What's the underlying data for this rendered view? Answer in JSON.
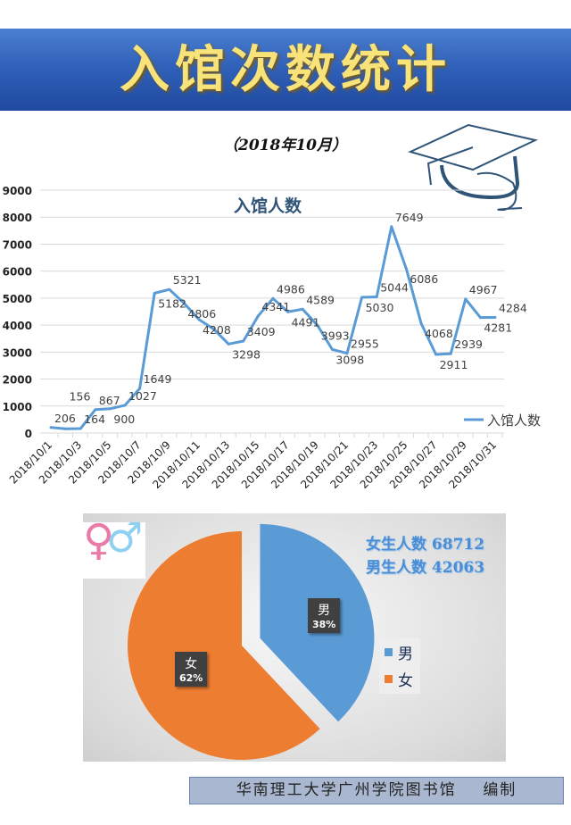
{
  "header": {
    "title": "入馆次数统计",
    "subtitle": "（2018年10月）"
  },
  "chart_data": [
    {
      "type": "line",
      "title": "入馆人数",
      "x": [
        "2018/10/1",
        "2018/10/2",
        "2018/10/3",
        "2018/10/4",
        "2018/10/5",
        "2018/10/6",
        "2018/10/7",
        "2018/10/8",
        "2018/10/9",
        "2018/10/10",
        "2018/10/11",
        "2018/10/12",
        "2018/10/13",
        "2018/10/14",
        "2018/10/15",
        "2018/10/16",
        "2018/10/17",
        "2018/10/18",
        "2018/10/19",
        "2018/10/20",
        "2018/10/21",
        "2018/10/22",
        "2018/10/23",
        "2018/10/24",
        "2018/10/25",
        "2018/10/26",
        "2018/10/27",
        "2018/10/28",
        "2018/10/29",
        "2018/10/30",
        "2018/10/31"
      ],
      "xtick_labels": [
        "2018/10/1",
        "2018/10/3",
        "2018/10/5",
        "2018/10/7",
        "2018/10/9",
        "2018/10/11",
        "2018/10/13",
        "2018/10/15",
        "2018/10/17",
        "2018/10/19",
        "2018/10/21",
        "2018/10/23",
        "2018/10/25",
        "2018/10/27",
        "2018/10/29",
        "2018/10/31"
      ],
      "series": [
        {
          "name": "入馆人数",
          "color": "#5b9bd5",
          "values": [
            206,
            156,
            164,
            867,
            900,
            1027,
            1649,
            5182,
            5321,
            4806,
            4208,
            3850,
            3298,
            3409,
            4341,
            4986,
            4491,
            4589,
            3993,
            3098,
            2955,
            5030,
            5044,
            7649,
            6086,
            4068,
            2911,
            2939,
            4967,
            4281,
            4284
          ],
          "unlabeled_index": [
            11
          ]
        }
      ],
      "ylim": [
        0,
        9000
      ],
      "yticks": [
        0,
        1000,
        2000,
        3000,
        4000,
        5000,
        6000,
        7000,
        8000,
        9000
      ],
      "grid": true,
      "legend": "bottom-right"
    },
    {
      "type": "pie",
      "categories": [
        "男",
        "女"
      ],
      "values": [
        38,
        62
      ],
      "labels": [
        "38%",
        "62%"
      ],
      "colors": [
        "#5b9bd5",
        "#ed7d31"
      ],
      "legend": "right"
    }
  ],
  "stats": [
    {
      "label": "女生人数",
      "value": "68712"
    },
    {
      "label": "男生人数",
      "value": "42063"
    }
  ],
  "footer": {
    "org": "华南理工大学广州学院图书馆",
    "suffix": "编制"
  }
}
